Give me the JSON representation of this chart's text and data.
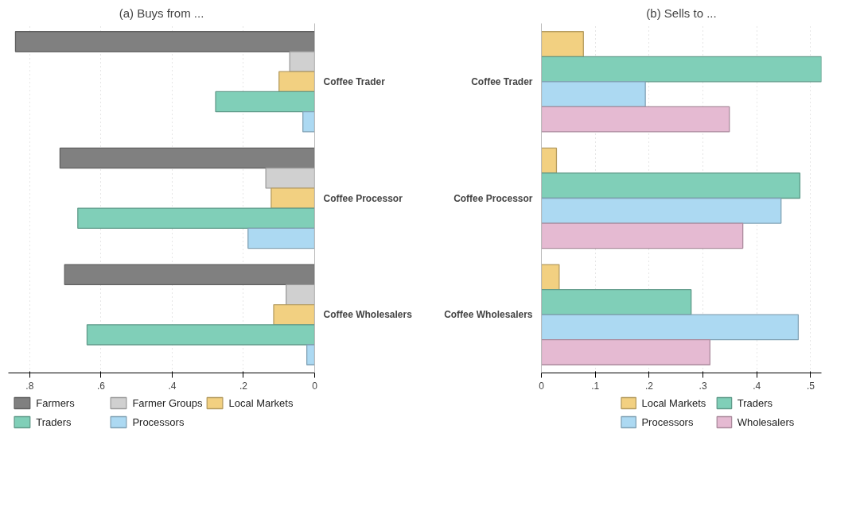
{
  "chart_data": [
    {
      "type": "bar",
      "orientation": "horizontal",
      "title": "(a) Buys from ...",
      "categories": [
        "Coffee Trader",
        "Coffee Processor",
        "Coffee Wholesalers"
      ],
      "xlim": [
        0.86,
        0
      ],
      "xticks": [
        {
          "value": 0.8,
          "label": ".8"
        },
        {
          "value": 0.6,
          "label": ".6"
        },
        {
          "value": 0.4,
          "label": ".4"
        },
        {
          "value": 0.2,
          "label": ".2"
        },
        0
      ],
      "grid": "x",
      "legend": "bottom",
      "series": [
        {
          "name": "Farmers",
          "color": "#808080",
          "values": [
            0.84,
            0.715,
            0.702
          ]
        },
        {
          "name": "Farmer Groups",
          "color": "#d0d0d0",
          "values": [
            0.07,
            0.137,
            0.08
          ]
        },
        {
          "name": "Local Markets",
          "color": "#f2d081",
          "values": [
            0.1,
            0.122,
            0.115
          ]
        },
        {
          "name": "Traders",
          "color": "#80cfb8",
          "values": [
            0.278,
            0.665,
            0.639
          ]
        },
        {
          "name": "Processors",
          "color": "#acd9f2",
          "values": [
            0.033,
            0.187,
            0.022
          ]
        }
      ]
    },
    {
      "type": "bar",
      "orientation": "horizontal",
      "title": "(b) Sells to ...",
      "categories": [
        "Coffee Trader",
        "Coffee Processor",
        "Coffee Wholesalers"
      ],
      "xlim": [
        0,
        0.52
      ],
      "xticks": [
        0,
        {
          "value": 0.1,
          "label": ".1"
        },
        {
          "value": 0.2,
          "label": ".2"
        },
        {
          "value": 0.3,
          "label": ".3"
        },
        {
          "value": 0.4,
          "label": ".4"
        },
        {
          "value": 0.5,
          "label": ".5"
        }
      ],
      "grid": "x",
      "legend": "bottom",
      "series": [
        {
          "name": "Local Markets",
          "color": "#f2d081",
          "values": [
            0.078,
            0.028,
            0.033
          ]
        },
        {
          "name": "Traders",
          "color": "#80cfb8",
          "values": [
            0.52,
            0.48,
            0.278
          ]
        },
        {
          "name": "Processors",
          "color": "#acd9f2",
          "values": [
            0.193,
            0.445,
            0.477
          ]
        },
        {
          "name": "Wholesalers",
          "color": "#e5bad2",
          "values": [
            0.349,
            0.374,
            0.313
          ]
        }
      ]
    }
  ]
}
